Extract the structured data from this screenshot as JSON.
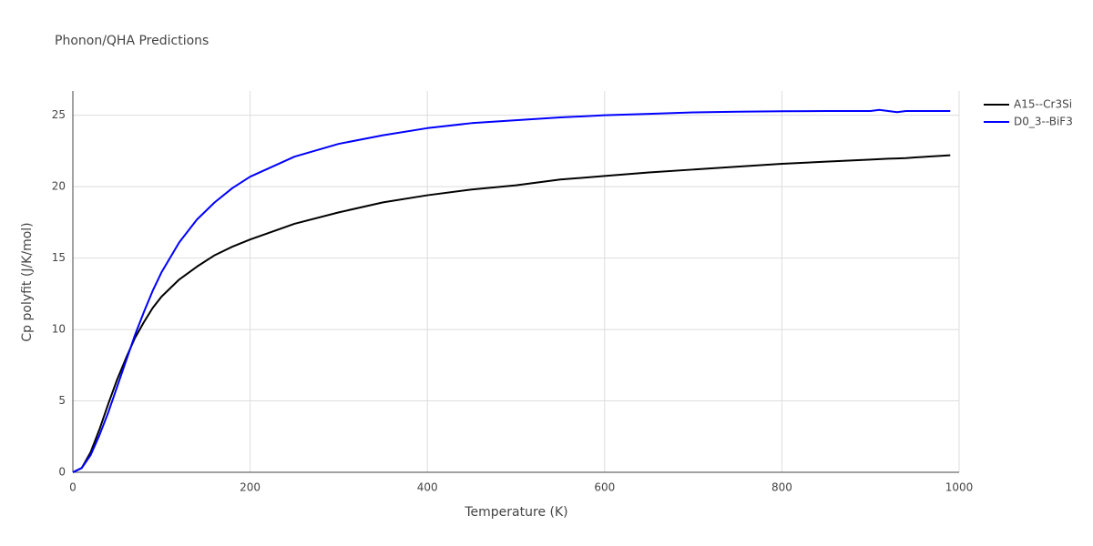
{
  "chart_data": {
    "type": "line",
    "title": "Phonon/QHA Predictions",
    "x_label": "Temperature (K)",
    "y_label": "Cp polyfit (J/K/mol)",
    "x": [
      0,
      10,
      20,
      30,
      40,
      50,
      60,
      70,
      80,
      90,
      100,
      120,
      140,
      160,
      180,
      200,
      250,
      300,
      350,
      400,
      450,
      500,
      550,
      600,
      650,
      700,
      750,
      800,
      850,
      900,
      910,
      920,
      930,
      940,
      950,
      990
    ],
    "series": [
      {
        "name": "A15--Cr3Si",
        "color": "#000000",
        "values": [
          0,
          0.3,
          1.4,
          3.0,
          4.8,
          6.5,
          8.0,
          9.4,
          10.5,
          11.5,
          12.3,
          13.5,
          14.4,
          15.2,
          15.8,
          16.3,
          17.4,
          18.2,
          18.9,
          19.4,
          19.8,
          20.1,
          20.5,
          20.75,
          21.0,
          21.2,
          21.4,
          21.6,
          21.75,
          21.9,
          21.93,
          21.96,
          21.98,
          22.0,
          22.05,
          22.2
        ]
      },
      {
        "name": "D0_3--BiF3",
        "color": "#0000ff",
        "values": [
          0,
          0.3,
          1.2,
          2.6,
          4.2,
          6.0,
          7.8,
          9.6,
          11.2,
          12.7,
          14.0,
          16.1,
          17.7,
          18.9,
          19.9,
          20.7,
          22.1,
          23.0,
          23.6,
          24.1,
          24.45,
          24.65,
          24.85,
          25.0,
          25.1,
          25.2,
          25.25,
          25.28,
          25.3,
          25.3,
          25.38,
          25.3,
          25.22,
          25.3,
          25.3,
          25.3
        ]
      }
    ],
    "xlim": [
      0,
      1000
    ],
    "xticks": [
      0,
      200,
      400,
      600,
      800,
      1000
    ],
    "ylim": [
      0,
      26.7
    ],
    "yticks": [
      0,
      5,
      10,
      15,
      20,
      25
    ],
    "grid": true,
    "legend": "right"
  }
}
